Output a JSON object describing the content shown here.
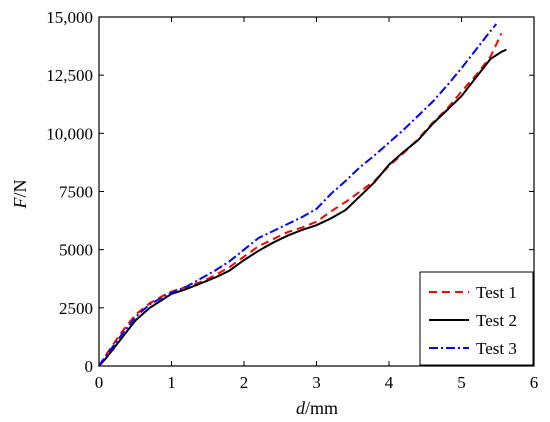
{
  "chart_data": {
    "type": "line",
    "xlabel_italic": "d",
    "xlabel_unit": "/mm",
    "ylabel_italic": "F",
    "ylabel_unit": "/N",
    "xlim": [
      0,
      6
    ],
    "ylim": [
      0,
      15000
    ],
    "xticks": [
      0,
      1,
      2,
      3,
      4,
      5,
      6
    ],
    "xtick_labels": [
      "0",
      "1",
      "2",
      "3",
      "4",
      "5",
      "6"
    ],
    "yticks": [
      0,
      2500,
      5000,
      7500,
      10000,
      12500,
      15000
    ],
    "ytick_labels": [
      "0",
      "2500",
      "5000",
      "7500",
      "10,000",
      "12,500",
      "15,000"
    ],
    "grid": false,
    "legend_position": "bottom-right",
    "series": [
      {
        "name": "Test 1",
        "color": "#ff0000",
        "dash": "dashed",
        "x": [
          0,
          0.1,
          0.3,
          0.5,
          0.7,
          0.9,
          1.0,
          1.2,
          1.4,
          1.6,
          1.8,
          2.0,
          2.2,
          2.4,
          2.6,
          2.8,
          3.0,
          3.2,
          3.4,
          3.6,
          3.8,
          4.0,
          4.2,
          4.4,
          4.6,
          4.8,
          5.0,
          5.2,
          5.4,
          5.55
        ],
        "y": [
          0,
          500,
          1400,
          2200,
          2700,
          3050,
          3200,
          3400,
          3600,
          3900,
          4250,
          4700,
          5150,
          5450,
          5750,
          5950,
          6200,
          6650,
          7050,
          7500,
          7950,
          8600,
          9150,
          9750,
          10450,
          11050,
          11800,
          12500,
          13300,
          14300
        ]
      },
      {
        "name": "Test 2",
        "color": "#000000",
        "dash": "solid",
        "x": [
          0,
          0.1,
          0.3,
          0.5,
          0.7,
          0.9,
          1.0,
          1.2,
          1.4,
          1.6,
          1.8,
          2.0,
          2.2,
          2.4,
          2.6,
          2.8,
          3.0,
          3.2,
          3.4,
          3.6,
          3.8,
          4.0,
          4.2,
          4.4,
          4.6,
          4.8,
          5.0,
          5.2,
          5.4,
          5.55,
          5.62
        ],
        "y": [
          0,
          350,
          1150,
          1950,
          2500,
          2900,
          3100,
          3300,
          3550,
          3800,
          4100,
          4550,
          4950,
          5300,
          5600,
          5850,
          6050,
          6350,
          6700,
          7300,
          7900,
          8650,
          9200,
          9700,
          10400,
          11000,
          11600,
          12400,
          13200,
          13500,
          13600
        ]
      },
      {
        "name": "Test 3",
        "color": "#0000ff",
        "dash": "dashdot",
        "x": [
          0,
          0.1,
          0.3,
          0.5,
          0.7,
          0.9,
          1.0,
          1.2,
          1.4,
          1.6,
          1.8,
          2.0,
          2.2,
          2.4,
          2.6,
          2.8,
          3.0,
          3.2,
          3.4,
          3.6,
          3.8,
          4.0,
          4.2,
          4.4,
          4.6,
          4.8,
          5.0,
          5.2,
          5.4,
          5.48
        ],
        "y": [
          0,
          450,
          1300,
          2100,
          2650,
          3000,
          3150,
          3400,
          3750,
          4100,
          4500,
          5000,
          5500,
          5800,
          6100,
          6400,
          6750,
          7400,
          7950,
          8550,
          9050,
          9600,
          10150,
          10750,
          11350,
          12050,
          12800,
          13600,
          14400,
          14700
        ]
      }
    ]
  }
}
